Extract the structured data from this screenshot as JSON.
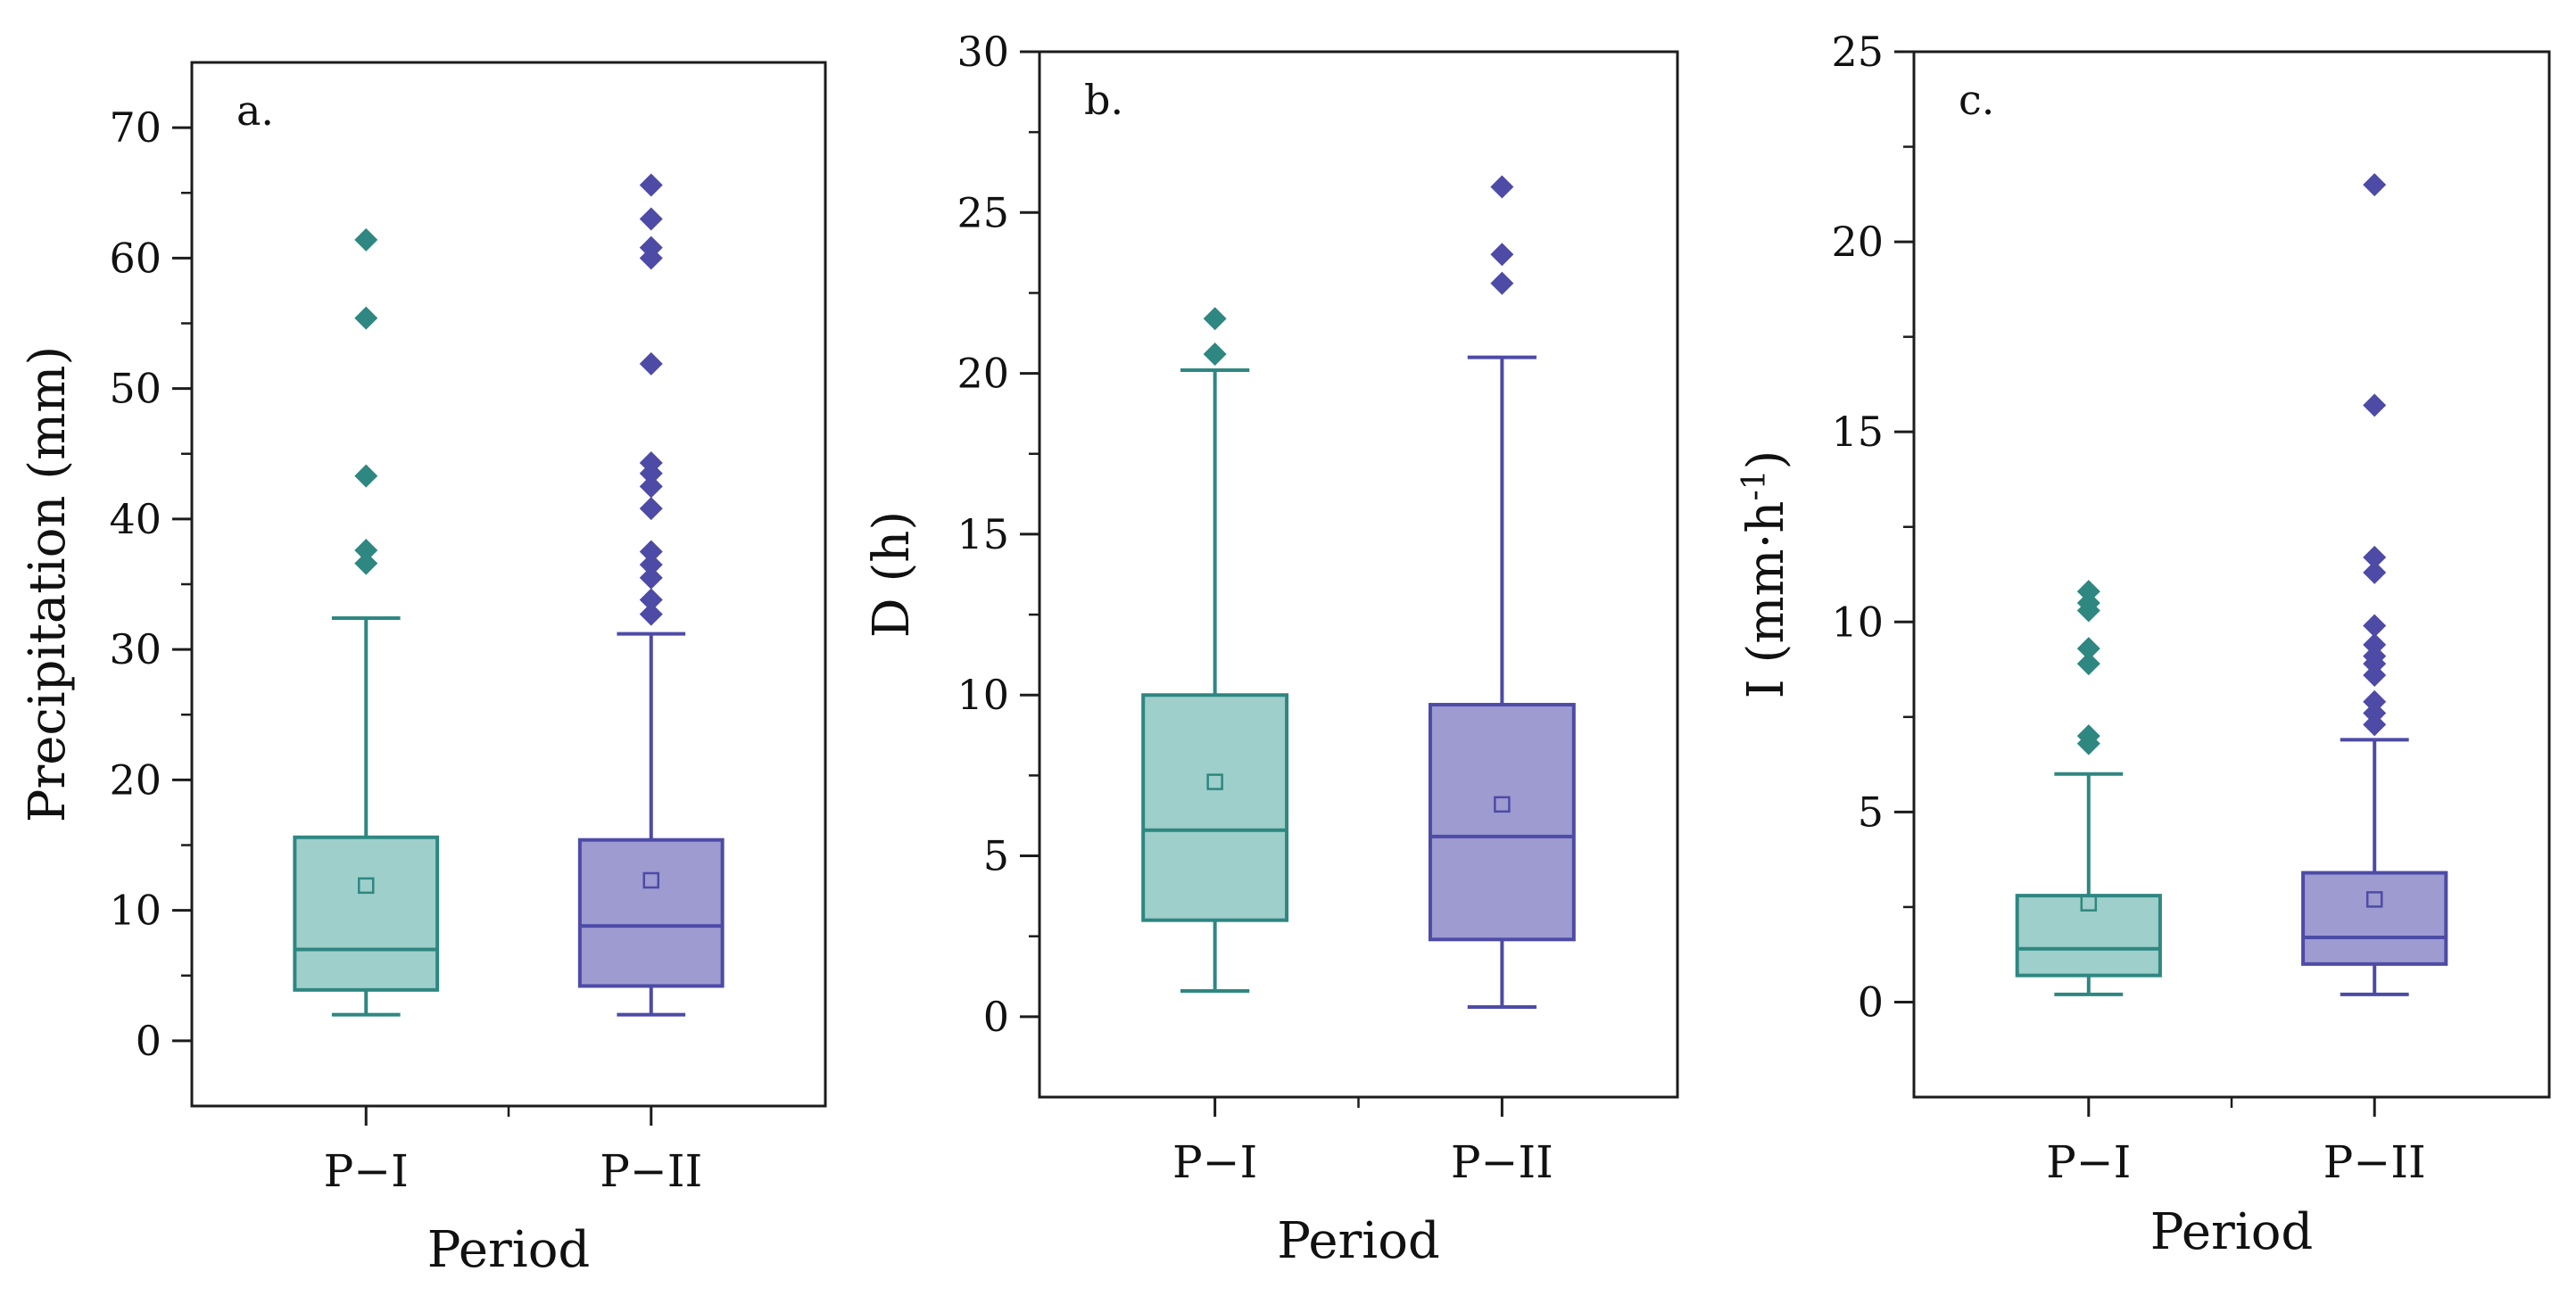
{
  "colors": {
    "P-I": {
      "stroke": "#2e8781",
      "fill": "#9fcfcb",
      "marker": "#2e8781"
    },
    "P-II": {
      "stroke": "#4d4ba6",
      "fill": "#9d9bd0",
      "marker": "#4d4ba6"
    }
  },
  "chart_data": [
    {
      "type": "box",
      "panel_label": "a.",
      "xlabel": "Period",
      "ylabel": "Precipitation (mm)",
      "ylim": [
        -5,
        75
      ],
      "yticks": [
        0,
        10,
        20,
        30,
        40,
        50,
        60,
        70
      ],
      "categories": [
        "P−I",
        "P−II"
      ],
      "boxes": [
        {
          "category": "P−I",
          "whisker_low": 2.0,
          "q1": 3.9,
          "median": 7.0,
          "q3": 15.6,
          "whisker_high": 32.4,
          "mean": 11.9,
          "outliers": [
            36.6,
            37.6,
            43.3,
            55.4,
            61.4
          ]
        },
        {
          "category": "P−II",
          "whisker_low": 2.0,
          "q1": 4.2,
          "median": 8.8,
          "q3": 15.4,
          "whisker_high": 31.2,
          "mean": 12.3,
          "outliers": [
            32.7,
            33.8,
            35.5,
            36.5,
            37.5,
            40.8,
            42.5,
            43.5,
            44.3,
            51.9,
            60.0,
            60.8,
            63.0,
            65.6
          ]
        }
      ]
    },
    {
      "type": "box",
      "panel_label": "b.",
      "xlabel": "Period",
      "ylabel": "D (h)",
      "ylim": [
        -2.5,
        30
      ],
      "yticks": [
        0,
        5,
        10,
        15,
        20,
        25,
        30
      ],
      "categories": [
        "P−I",
        "P−II"
      ],
      "boxes": [
        {
          "category": "P−I",
          "whisker_low": 0.8,
          "q1": 3.0,
          "median": 5.8,
          "q3": 10.0,
          "whisker_high": 20.1,
          "mean": 7.3,
          "outliers": [
            20.6,
            21.7
          ]
        },
        {
          "category": "P−II",
          "whisker_low": 0.3,
          "q1": 2.4,
          "median": 5.6,
          "q3": 9.7,
          "whisker_high": 20.5,
          "mean": 6.6,
          "outliers": [
            22.8,
            23.7,
            25.8
          ]
        }
      ]
    },
    {
      "type": "box",
      "panel_label": "c.",
      "xlabel": "Period",
      "ylabel": "I (mm·h",
      "ylabel_superscript": "-1",
      "ylabel_suffix": ")",
      "ylim": [
        -2.5,
        25
      ],
      "yticks": [
        0,
        5,
        10,
        15,
        20,
        25
      ],
      "categories": [
        "P−I",
        "P−II"
      ],
      "boxes": [
        {
          "category": "P−I",
          "whisker_low": 0.2,
          "q1": 0.7,
          "median": 1.4,
          "q3": 2.8,
          "whisker_high": 6.0,
          "mean": 2.6,
          "outliers": [
            6.8,
            7.0,
            8.9,
            9.3,
            10.3,
            10.5,
            10.8
          ]
        },
        {
          "category": "P−II",
          "whisker_low": 0.2,
          "q1": 1.0,
          "median": 1.7,
          "q3": 3.4,
          "whisker_high": 6.9,
          "mean": 2.7,
          "outliers": [
            7.3,
            7.6,
            7.9,
            8.6,
            8.9,
            9.1,
            9.4,
            9.9,
            11.3,
            11.7,
            15.7,
            21.5
          ]
        }
      ]
    }
  ]
}
